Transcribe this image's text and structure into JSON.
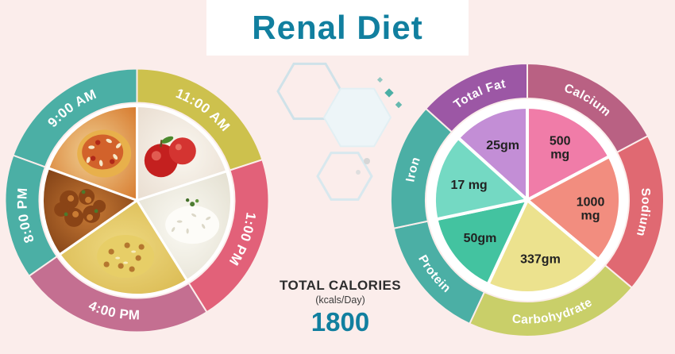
{
  "title": "Renal Diet",
  "colors": {
    "background": "#fbedeb",
    "accent_teal_blue": "#117f9f",
    "ring_teal": "#4bafa5"
  },
  "calories": {
    "label": "TOTAL CALORIES",
    "sublabel": "(kcals/Day)",
    "value": "1800"
  },
  "meal_wheel": {
    "segments": [
      {
        "time": "9:00 AM",
        "color": "#4bafa5",
        "food": "biryani"
      },
      {
        "time": "11:00 AM",
        "color": "#cdc14d",
        "food": "apples"
      },
      {
        "time": "1:00 PM",
        "color": "#e26179",
        "food": "steamed-rice"
      },
      {
        "time": "4:00 PM",
        "color": "#c46f91",
        "food": "lemon-rice"
      },
      {
        "time": "8:00 PM",
        "color": "#4bafa5",
        "food": "fried-snack"
      }
    ]
  },
  "nutrient_wheel": {
    "segments": [
      {
        "label": "Total Fat",
        "value": "25gm",
        "ring_color": "#9c57a5",
        "wedge_color": "#c38ed6"
      },
      {
        "label": "Calcium",
        "value": "500\nmg",
        "ring_color": "#b96183",
        "wedge_color": "#f07ca8"
      },
      {
        "label": "Sodium",
        "value": "1000\nmg",
        "ring_color": "#e06972",
        "wedge_color": "#f28d7f"
      },
      {
        "label": "Carbohydrate",
        "value": "337gm",
        "ring_color": "#c9cf69",
        "wedge_color": "#ece28e"
      },
      {
        "label": "Protein",
        "value": "50gm",
        "ring_color": "#4bafa5",
        "wedge_color": "#43c3a0"
      },
      {
        "label": "Iron",
        "value": "17 mg",
        "ring_color": "#4bafa5",
        "wedge_color": "#74d9c3"
      }
    ]
  },
  "chart_data": [
    {
      "type": "pie",
      "title": "Daily meal schedule wheel",
      "categories": [
        "9:00 AM",
        "11:00 AM",
        "1:00 PM",
        "4:00 PM",
        "8:00 PM"
      ],
      "values": [
        19.4,
        20.0,
        21.1,
        24.2,
        15.3
      ],
      "note": "clock-style wheel with food photos; values are approximate segment shares in %"
    },
    {
      "type": "pie",
      "title": "Daily nutrient targets",
      "categories": [
        "Total Fat",
        "Calcium",
        "Sodium",
        "Carbohydrate",
        "Protein",
        "Iron"
      ],
      "values": [
        25,
        500,
        1000,
        337,
        50,
        17
      ],
      "units": [
        "gm",
        "mg",
        "mg",
        "gm",
        "gm",
        "mg"
      ],
      "values_text": [
        "25gm",
        "500 mg",
        "1000 mg",
        "337gm",
        "50gm",
        "17 mg"
      ]
    }
  ]
}
